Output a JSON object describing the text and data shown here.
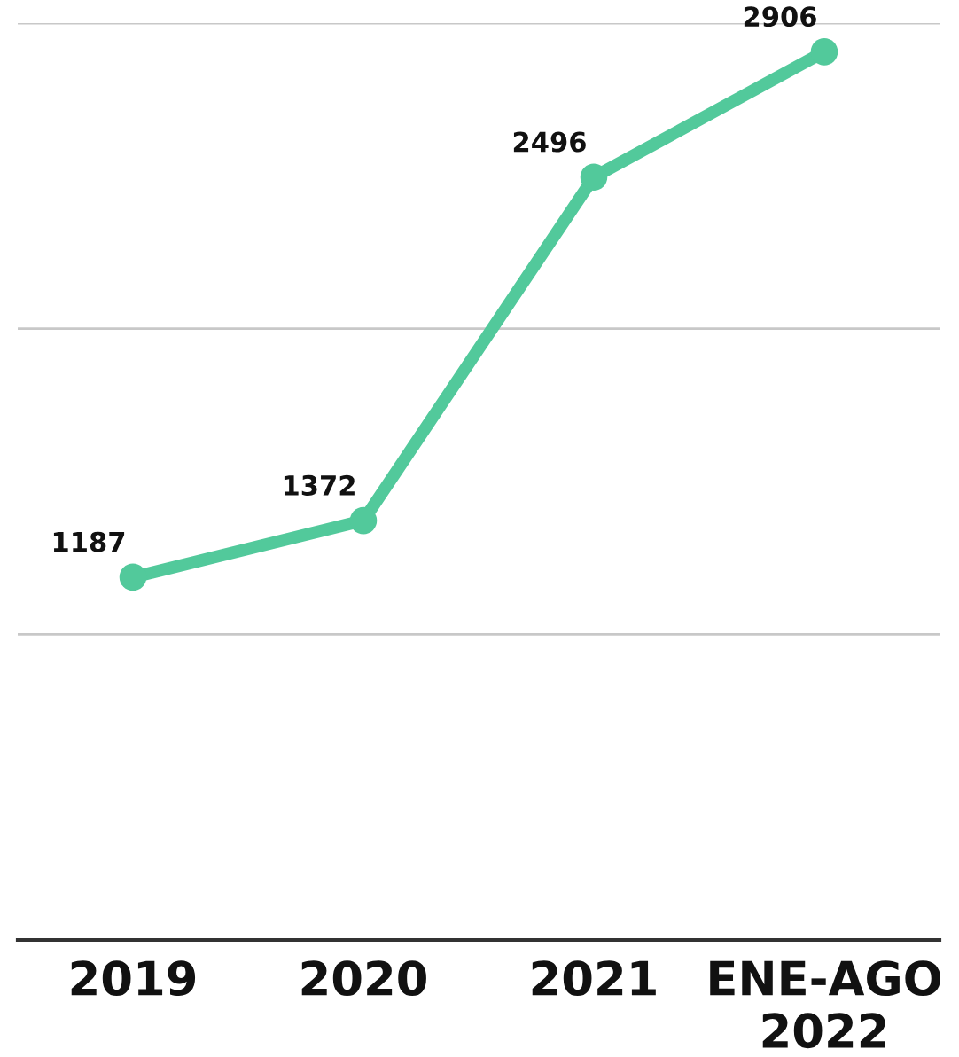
{
  "chart_data": {
    "type": "line",
    "categories": [
      "2019",
      "2020",
      "2021",
      "ENE-AGO\n2022"
    ],
    "series": [
      {
        "color": "#52c99b",
        "values": [
          1187,
          1372,
          2496,
          2906
        ]
      }
    ],
    "ylim": [
      0,
      3000
    ],
    "ref_lines": [
      {
        "axis": "y",
        "value": 1000,
        "color": "#c8c8c8"
      },
      {
        "axis": "y",
        "value": 2000,
        "color": "#c8c8c8"
      },
      {
        "axis": "y",
        "value": 3000,
        "color": "#c8c8c8"
      }
    ],
    "tick_labels": "x",
    "marker": "circle",
    "line_style": "solid",
    "data_labels": true
  }
}
